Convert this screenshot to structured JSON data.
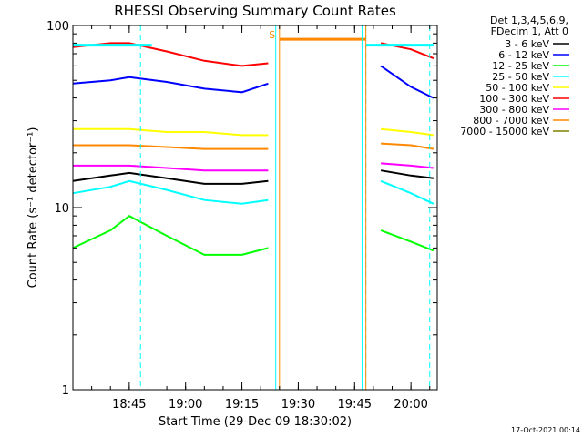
{
  "chart_data": {
    "type": "line",
    "title": "RHESSI Observing Summary Count Rates",
    "xlabel": "Start Time (29-Dec-09 18:30:02)",
    "ylabel": "Count Rate (s⁻¹ detector⁻¹)",
    "y_scale": "log",
    "ylim": [
      1,
      100
    ],
    "x_unit": "minutes",
    "xlim": [
      "18:30",
      "20:07"
    ],
    "x_ticks": [
      "18:45",
      "19:00",
      "19:15",
      "19:30",
      "19:45",
      "20:00"
    ],
    "y_ticks": [
      "1",
      "10",
      "100"
    ],
    "legend_header": [
      "Det 1,3,4,5,6,9,",
      "FDecim 1, Att 0"
    ],
    "legend_placement": "right",
    "series": [
      {
        "name": "3 - 6 keV",
        "color": "#000000",
        "x": [
          "18:30",
          "18:40",
          "18:45",
          "18:55",
          "19:05",
          "19:15",
          "19:22",
          "19:52",
          "20:00",
          "20:06"
        ],
        "y": [
          14,
          15,
          15.5,
          14.5,
          13.5,
          13.5,
          14,
          16,
          15,
          14.5
        ]
      },
      {
        "name": "6 - 12 keV",
        "color": "#0000ff",
        "x": [
          "18:30",
          "18:40",
          "18:45",
          "18:55",
          "19:05",
          "19:15",
          "19:22",
          "19:52",
          "20:00",
          "20:06"
        ],
        "y": [
          48,
          50,
          52,
          49,
          45,
          43,
          48,
          60,
          46,
          40
        ]
      },
      {
        "name": "12 - 25 keV",
        "color": "#00ff00",
        "x": [
          "18:30",
          "18:40",
          "18:45",
          "18:55",
          "19:05",
          "19:15",
          "19:22",
          "19:52",
          "20:00",
          "20:06"
        ],
        "y": [
          6,
          7.5,
          9,
          7,
          5.5,
          5.5,
          6,
          7.5,
          6.5,
          5.8
        ]
      },
      {
        "name": "25 - 50 keV",
        "color": "#00ffff",
        "x": [
          "18:30",
          "18:40",
          "18:45",
          "18:55",
          "19:05",
          "19:15",
          "19:22",
          "19:52",
          "20:00",
          "20:06"
        ],
        "y": [
          12,
          13,
          14,
          12.5,
          11,
          10.5,
          11,
          14,
          12,
          10.5
        ]
      },
      {
        "name": "50 - 100 keV",
        "color": "#ffff00",
        "x": [
          "18:30",
          "18:40",
          "18:45",
          "18:55",
          "19:05",
          "19:15",
          "19:22",
          "19:52",
          "20:00",
          "20:06"
        ],
        "y": [
          27,
          27,
          27,
          26,
          26,
          25,
          25,
          27,
          26,
          25
        ]
      },
      {
        "name": "100 - 300 keV",
        "color": "#ff0000",
        "x": [
          "18:30",
          "18:40",
          "18:45",
          "18:55",
          "19:05",
          "19:15",
          "19:22",
          "19:52",
          "20:00",
          "20:06"
        ],
        "y": [
          76,
          80,
          80,
          72,
          64,
          60,
          62,
          80,
          74,
          66
        ]
      },
      {
        "name": "300 - 800 keV",
        "color": "#ff00ff",
        "x": [
          "18:30",
          "18:40",
          "18:45",
          "18:55",
          "19:05",
          "19:15",
          "19:22",
          "19:52",
          "20:00",
          "20:06"
        ],
        "y": [
          17,
          17,
          17,
          16.5,
          16,
          16,
          16,
          17.5,
          17,
          16.5
        ]
      },
      {
        "name": "800 - 7000 keV",
        "color": "#ff8800",
        "x": [
          "18:30",
          "18:40",
          "18:45",
          "18:55",
          "19:05",
          "19:15",
          "19:22",
          "19:52",
          "20:00",
          "20:06"
        ],
        "y": [
          22,
          22,
          22,
          21.5,
          21,
          21,
          21,
          22.5,
          22,
          21
        ]
      },
      {
        "name": "7000 - 15000 keV",
        "color": "#808000",
        "x": [
          "18:30",
          "20:06"
        ],
        "y": [
          1,
          1
        ]
      }
    ],
    "annotations": [
      {
        "text": "S",
        "x": "19:24",
        "y": 85,
        "color": "#ff8800"
      }
    ],
    "saa_interval": {
      "start": "19:25",
      "end": "19:48",
      "level": 84,
      "color": "#ff8800"
    },
    "markers": [
      {
        "x": "18:48",
        "color": "#00ffff",
        "style": "dashed"
      },
      {
        "x": "19:24",
        "color": "#00ffff",
        "style": "solid"
      },
      {
        "x": "19:47",
        "color": "#00ffff",
        "style": "solid"
      },
      {
        "x": "19:48",
        "color": "#00ffff",
        "style": "dashed"
      },
      {
        "x": "20:05",
        "color": "#00ffff",
        "style": "dashed"
      },
      {
        "x": "19:25",
        "color": "#ff8800",
        "style": "solid"
      },
      {
        "x": "19:48",
        "color": "#ff8800",
        "style": "solid"
      }
    ],
    "data_gap": {
      "start": "19:25",
      "end": "19:50"
    },
    "top_bars": [
      {
        "start": "18:30",
        "end": "18:51",
        "level": 78,
        "color": "#00ffff"
      },
      {
        "start": "19:48",
        "end": "20:06",
        "level": 78,
        "color": "#00ffff"
      }
    ],
    "grid": false
  },
  "footer": {
    "timestamp": "17-Oct-2021 00:14"
  }
}
